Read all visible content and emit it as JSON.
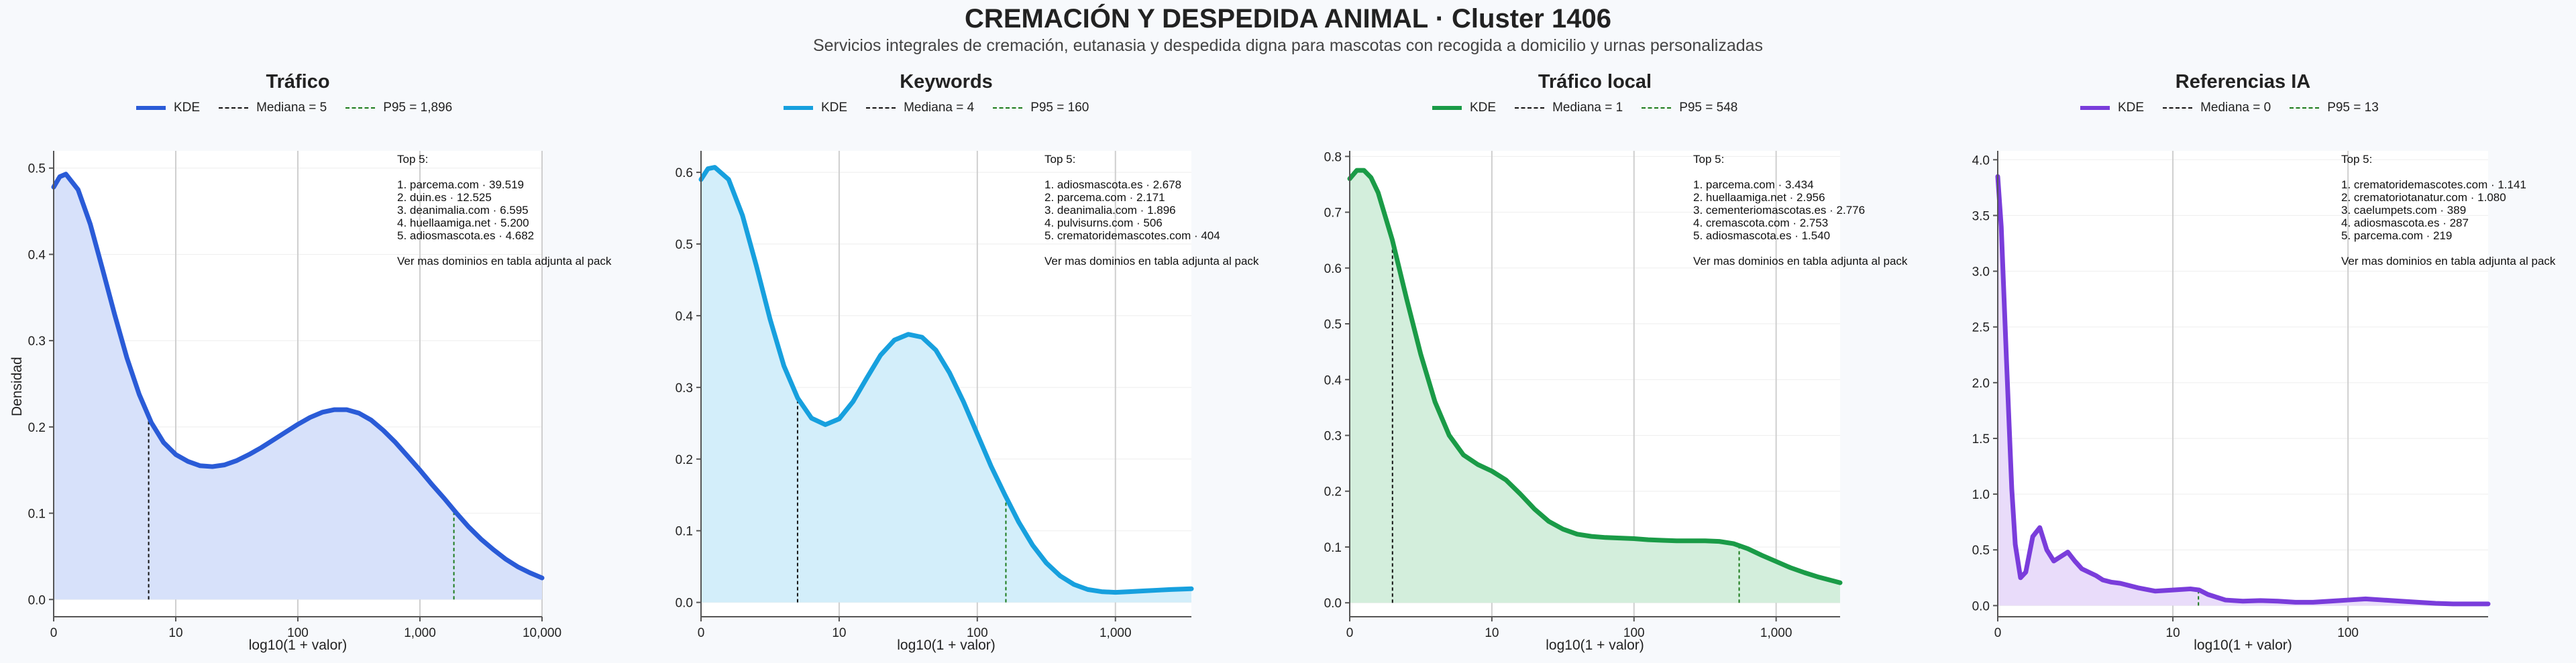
{
  "title": "CREMACIÓN Y DESPEDIDA ANIMAL · Cluster 1406",
  "subtitle": "Servicios integrales de cremación, eutanasia y despedida digna para mascotas con recogida a domicilio y urnas personalizadas",
  "common": {
    "ylabel": "Densidad",
    "xlabel": "log10(1 + valor)",
    "legend_kde": "KDE"
  },
  "chart_data": [
    {
      "type": "area",
      "title": "Tráfico",
      "color": "#2a5bd7",
      "fill": "#d7e1fa",
      "legend_median": "Mediana = 5",
      "legend_p95": "P95 = 1,896",
      "median_x": 0.778,
      "p95_x": 3.278,
      "xlim": [
        0,
        4
      ],
      "ylim": [
        -0.02,
        0.52
      ],
      "xticks": [
        0,
        1,
        2,
        3,
        4
      ],
      "xtick_labels": [
        "0",
        "10",
        "100",
        "1,000",
        "10,000"
      ],
      "yticks": [
        0.0,
        0.1,
        0.2,
        0.3,
        0.4,
        0.5
      ],
      "ytick_labels": [
        "0.0",
        "0.1",
        "0.2",
        "0.3",
        "0.4",
        "0.5"
      ],
      "x": [
        0,
        0.05,
        0.1,
        0.2,
        0.3,
        0.4,
        0.5,
        0.6,
        0.7,
        0.8,
        0.9,
        1.0,
        1.1,
        1.2,
        1.3,
        1.4,
        1.5,
        1.6,
        1.7,
        1.8,
        1.9,
        2.0,
        2.1,
        2.2,
        2.3,
        2.4,
        2.5,
        2.6,
        2.7,
        2.8,
        2.9,
        3.0,
        3.1,
        3.2,
        3.3,
        3.4,
        3.5,
        3.6,
        3.7,
        3.8,
        3.9,
        4.0
      ],
      "y": [
        0.478,
        0.49,
        0.493,
        0.475,
        0.435,
        0.383,
        0.33,
        0.28,
        0.238,
        0.205,
        0.182,
        0.168,
        0.16,
        0.155,
        0.154,
        0.156,
        0.161,
        0.168,
        0.176,
        0.185,
        0.194,
        0.203,
        0.211,
        0.217,
        0.22,
        0.22,
        0.216,
        0.208,
        0.196,
        0.182,
        0.166,
        0.15,
        0.133,
        0.117,
        0.1,
        0.084,
        0.07,
        0.058,
        0.047,
        0.038,
        0.031,
        0.025
      ],
      "top": [
        "Top 5:",
        "",
        "1. parcema.com · 39.519",
        "2. duin.es · 12.525",
        "3. deanimalia.com · 6.595",
        "4. huellaamiga.net · 5.200",
        "5. adiosmascota.es · 4.682",
        "",
        "Ver mas dominios en tabla adjunta al pack"
      ]
    },
    {
      "type": "area",
      "title": "Keywords",
      "color": "#17a0de",
      "fill": "#d3eefa",
      "legend_median": "Mediana = 4",
      "legend_p95": "P95 = 160",
      "median_x": 0.699,
      "p95_x": 2.207,
      "xlim": [
        0,
        3.55
      ],
      "ylim": [
        -0.02,
        0.63
      ],
      "xticks": [
        0,
        1,
        2,
        3
      ],
      "xtick_labels": [
        "0",
        "10",
        "100",
        "1,000"
      ],
      "yticks": [
        0.0,
        0.1,
        0.2,
        0.3,
        0.4,
        0.5,
        0.6
      ],
      "ytick_labels": [
        "0.0",
        "0.1",
        "0.2",
        "0.3",
        "0.4",
        "0.5",
        "0.6"
      ],
      "x": [
        0,
        0.05,
        0.1,
        0.2,
        0.3,
        0.4,
        0.5,
        0.6,
        0.7,
        0.8,
        0.9,
        1.0,
        1.1,
        1.2,
        1.3,
        1.4,
        1.5,
        1.6,
        1.7,
        1.8,
        1.9,
        2.0,
        2.1,
        2.2,
        2.3,
        2.4,
        2.5,
        2.6,
        2.7,
        2.8,
        2.9,
        3.0,
        3.1,
        3.2,
        3.3,
        3.4,
        3.55
      ],
      "y": [
        0.59,
        0.605,
        0.607,
        0.59,
        0.54,
        0.47,
        0.395,
        0.33,
        0.285,
        0.257,
        0.248,
        0.256,
        0.28,
        0.313,
        0.345,
        0.366,
        0.374,
        0.37,
        0.352,
        0.32,
        0.28,
        0.235,
        0.19,
        0.15,
        0.112,
        0.08,
        0.055,
        0.037,
        0.025,
        0.018,
        0.015,
        0.014,
        0.015,
        0.016,
        0.017,
        0.018,
        0.019
      ],
      "top": [
        "Top 5:",
        "",
        "1. adiosmascota.es · 2.678",
        "2. parcema.com · 2.171",
        "3. deanimalia.com · 1.896",
        "4. pulvisurns.com · 506",
        "5. crematoridemascotes.com · 404",
        "",
        "Ver mas dominios en tabla adjunta al pack"
      ]
    },
    {
      "type": "area",
      "title": "Tráfico local",
      "color": "#1a9b47",
      "fill": "#d3eedc",
      "legend_median": "Mediana = 1",
      "legend_p95": "P95 = 548",
      "median_x": 0.301,
      "p95_x": 2.74,
      "xlim": [
        0,
        3.45
      ],
      "ylim": [
        -0.025,
        0.81
      ],
      "xticks": [
        0,
        1,
        2,
        3
      ],
      "xtick_labels": [
        "0",
        "10",
        "100",
        "1,000"
      ],
      "yticks": [
        0.0,
        0.1,
        0.2,
        0.3,
        0.4,
        0.5,
        0.6,
        0.7,
        0.8
      ],
      "ytick_labels": [
        "0.0",
        "0.1",
        "0.2",
        "0.3",
        "0.4",
        "0.5",
        "0.6",
        "0.7",
        "0.8"
      ],
      "x": [
        0,
        0.05,
        0.1,
        0.15,
        0.2,
        0.3,
        0.4,
        0.5,
        0.6,
        0.7,
        0.8,
        0.9,
        1.0,
        1.1,
        1.2,
        1.3,
        1.4,
        1.5,
        1.6,
        1.7,
        1.8,
        1.9,
        2.0,
        2.1,
        2.2,
        2.3,
        2.4,
        2.5,
        2.6,
        2.7,
        2.8,
        2.9,
        3.0,
        3.1,
        3.2,
        3.3,
        3.45
      ],
      "y": [
        0.76,
        0.775,
        0.775,
        0.762,
        0.735,
        0.65,
        0.545,
        0.445,
        0.36,
        0.3,
        0.265,
        0.248,
        0.236,
        0.22,
        0.195,
        0.168,
        0.146,
        0.132,
        0.123,
        0.119,
        0.117,
        0.116,
        0.115,
        0.113,
        0.112,
        0.111,
        0.111,
        0.111,
        0.11,
        0.106,
        0.097,
        0.085,
        0.074,
        0.063,
        0.054,
        0.046,
        0.036
      ],
      "top": [
        "Top 5:",
        "",
        "1. parcema.com · 3.434",
        "2. huellaamiga.net · 2.956",
        "3. cementeriomascotas.es · 2.776",
        "4. cremascota.com · 2.753",
        "5. adiosmascota.es · 1.540",
        "",
        "Ver mas dominios en tabla adjunta al pack"
      ]
    },
    {
      "type": "area",
      "title": "Referencias IA",
      "color": "#7a3ddb",
      "fill": "#e9dcfa",
      "legend_median": "Mediana = 0",
      "legend_p95": "P95 = 13",
      "median_x": 0.0,
      "p95_x": 1.146,
      "xlim": [
        0,
        2.8
      ],
      "ylim": [
        -0.1,
        4.08
      ],
      "xticks": [
        0,
        1,
        2
      ],
      "xtick_labels": [
        "0",
        "10",
        "100"
      ],
      "yticks": [
        0.0,
        0.5,
        1.0,
        1.5,
        2.0,
        2.5,
        3.0,
        3.5,
        4.0
      ],
      "ytick_labels": [
        "0.0",
        "0.5",
        "1.0",
        "1.5",
        "2.0",
        "2.5",
        "3.0",
        "3.5",
        "4.0"
      ],
      "x": [
        0,
        0.02,
        0.05,
        0.08,
        0.1,
        0.13,
        0.16,
        0.2,
        0.24,
        0.28,
        0.32,
        0.36,
        0.4,
        0.44,
        0.48,
        0.52,
        0.56,
        0.6,
        0.65,
        0.7,
        0.8,
        0.9,
        1.0,
        1.1,
        1.15,
        1.2,
        1.3,
        1.4,
        1.5,
        1.6,
        1.7,
        1.8,
        1.9,
        2.0,
        2.1,
        2.2,
        2.3,
        2.4,
        2.5,
        2.6,
        2.7,
        2.8
      ],
      "y": [
        3.85,
        3.4,
        2.2,
        1.05,
        0.55,
        0.25,
        0.3,
        0.62,
        0.7,
        0.5,
        0.4,
        0.44,
        0.48,
        0.4,
        0.33,
        0.3,
        0.27,
        0.23,
        0.21,
        0.2,
        0.16,
        0.13,
        0.14,
        0.15,
        0.14,
        0.1,
        0.05,
        0.04,
        0.045,
        0.04,
        0.03,
        0.03,
        0.04,
        0.05,
        0.06,
        0.05,
        0.04,
        0.03,
        0.02,
        0.015,
        0.015,
        0.015
      ],
      "top": [
        "Top 5:",
        "",
        "1. crematoridemascotes.com · 1.141",
        "2. crematoriotanatur.com · 1.080",
        "3. caelumpets.com · 389",
        "4. adiosmascota.es · 287",
        "5. parcema.com · 219",
        "",
        "Ver mas dominios en tabla adjunta al pack"
      ]
    }
  ]
}
